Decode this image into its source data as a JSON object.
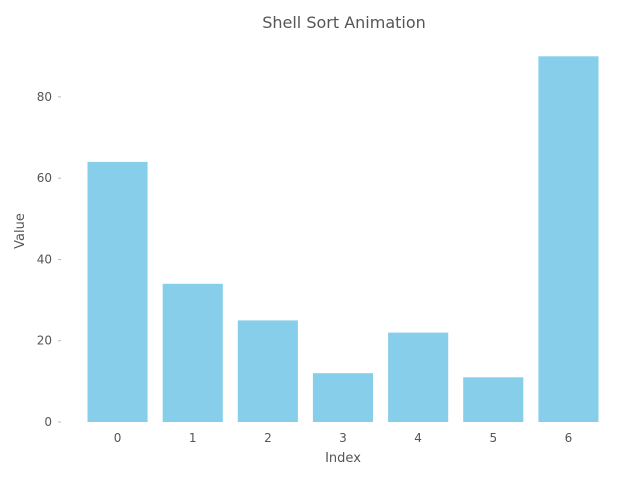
{
  "chart_data": {
    "type": "bar",
    "title": "Shell Sort Animation",
    "xlabel": "Index",
    "ylabel": "Value",
    "categories": [
      "0",
      "1",
      "2",
      "3",
      "4",
      "5",
      "6"
    ],
    "values": [
      64,
      34,
      25,
      12,
      22,
      11,
      90
    ],
    "ylim": [
      0,
      94.5
    ],
    "yticks": [
      0,
      20,
      40,
      60,
      80
    ],
    "grid": false,
    "legend": null,
    "colors": {
      "bar": "#87ceeb",
      "text": "#555555",
      "ticks": "#bbbbbb"
    }
  }
}
